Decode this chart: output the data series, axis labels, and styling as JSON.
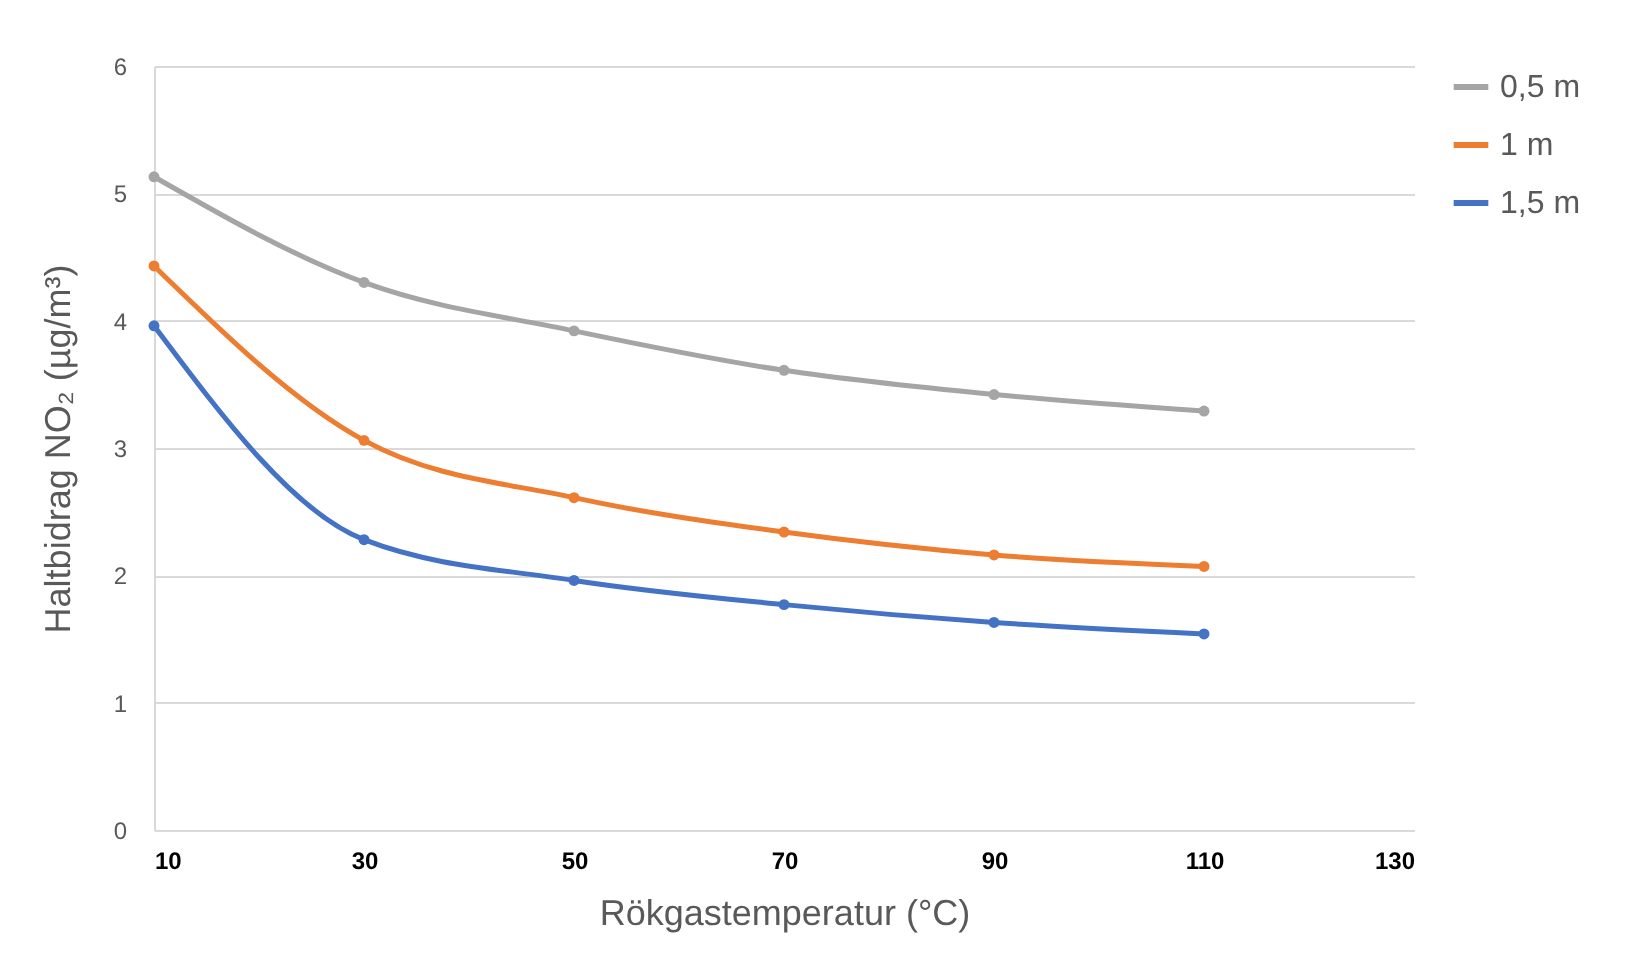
{
  "chart_data": {
    "type": "line",
    "xlabel": "Rökgastemperatur (°C)",
    "ylabel": "Haltbidrag NO₂ (µg/m³)",
    "x": [
      10,
      30,
      50,
      70,
      90,
      110
    ],
    "series": [
      {
        "name": "0,5 m",
        "color": "#a5a5a5",
        "values": [
          5.13,
          4.3,
          3.92,
          3.61,
          3.42,
          3.29
        ]
      },
      {
        "name": "1 m",
        "color": "#ed7d31",
        "values": [
          4.43,
          3.06,
          2.61,
          2.34,
          2.16,
          2.07
        ]
      },
      {
        "name": "1,5 m",
        "color": "#4472c4",
        "values": [
          3.96,
          2.28,
          1.96,
          1.77,
          1.63,
          1.54
        ]
      }
    ],
    "xlim": [
      10,
      130
    ],
    "xticks": [
      10,
      30,
      50,
      70,
      90,
      110,
      130
    ],
    "ylim": [
      0,
      6
    ],
    "yticks": [
      0,
      1,
      2,
      3,
      4,
      5,
      6
    ],
    "grid": "y",
    "legend": "right",
    "marker": "circle",
    "line_style": "solid"
  }
}
